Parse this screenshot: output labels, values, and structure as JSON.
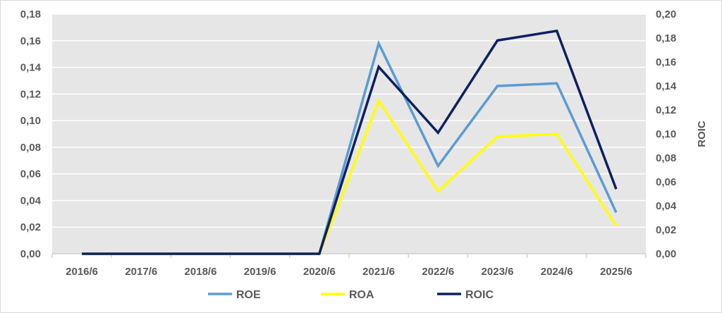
{
  "chart_data": {
    "type": "line",
    "categories": [
      "2016/6",
      "2017/6",
      "2018/6",
      "2019/6",
      "2020/6",
      "2021/6",
      "2022/6",
      "2023/6",
      "2024/6",
      "2025/6"
    ],
    "y_left": {
      "ylim": [
        0,
        0.18
      ],
      "ticks": [
        "0,00",
        "0,02",
        "0,04",
        "0,06",
        "0,08",
        "0,10",
        "0,12",
        "0,14",
        "0,16",
        "0,18"
      ]
    },
    "y_right": {
      "label": "ROIC",
      "ylim": [
        0,
        0.2
      ],
      "ticks": [
        "0,00",
        "0,02",
        "0,04",
        "0,06",
        "0,08",
        "0,10",
        "0,12",
        "0,14",
        "0,16",
        "0,18",
        "0,20"
      ]
    },
    "grid": true,
    "legend_position": "bottom",
    "series": [
      {
        "name": "ROE",
        "axis": "left",
        "color": "#5b9bd5",
        "values": [
          0,
          0,
          0,
          0,
          0,
          0.158,
          0.066,
          0.126,
          0.128,
          0.031
        ]
      },
      {
        "name": "ROA",
        "axis": "left",
        "color": "#ffff00",
        "values": [
          0,
          0,
          0,
          0,
          0,
          0.115,
          0.047,
          0.088,
          0.09,
          0.021
        ]
      },
      {
        "name": "ROIC",
        "axis": "right",
        "color": "#0d2060",
        "values": [
          0,
          0,
          0,
          0,
          0,
          0.156,
          0.101,
          0.178,
          0.186,
          0.054
        ]
      }
    ],
    "colors": {
      "plot_bg": "#e7e6e6",
      "grid": "#ffffff",
      "border": "#d9d9d9",
      "text": "#595959"
    }
  }
}
